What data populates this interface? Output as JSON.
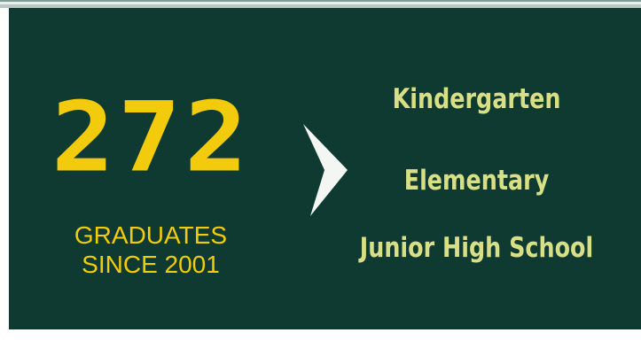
{
  "stat": {
    "number": "272",
    "label_lines": [
      "GRADUATES",
      "SINCE 2001"
    ]
  },
  "levels": [
    "Kindergarten",
    "Elementary",
    "Junior High School"
  ]
}
